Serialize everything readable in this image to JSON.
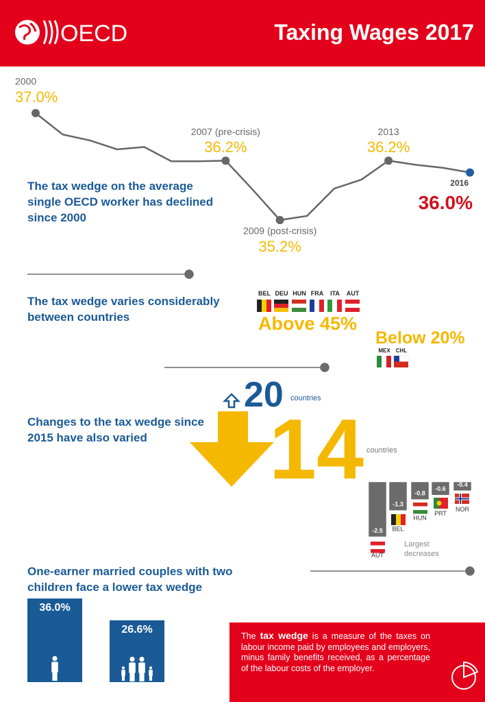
{
  "header": {
    "logo": "OECD",
    "title": "Taxing Wages 2017"
  },
  "trend_text": "The tax wedge on the average single OECD worker has declined since 2000",
  "countries": {
    "text": "The tax wedge varies considerably between countries",
    "above": {
      "label": "Above 45%",
      "codes": [
        "BEL",
        "DEU",
        "HUN",
        "FRA",
        "ITA",
        "AUT"
      ]
    },
    "below": {
      "label": "Below 20%",
      "codes": [
        "MEX",
        "CHL"
      ]
    }
  },
  "changes": {
    "text": "Changes to the tax wedge since 2015 have also varied",
    "increase": {
      "count": 20,
      "unit": "countries"
    },
    "decrease": {
      "count": 14,
      "unit": "countries"
    }
  },
  "couples_text": "One-earner married couples with two children face a lower tax wedge",
  "note": {
    "lead": "The",
    "term": "tax wedge",
    "rest": "is a measure of the taxes on labour income paid by employees and employers, minus family benefits received, as a percentage of the labour costs of the employer."
  },
  "chart_data": [
    {
      "type": "line",
      "x": [
        2000,
        2001,
        2002,
        2003,
        2004,
        2005,
        2006,
        2007,
        2008,
        2009,
        2010,
        2011,
        2012,
        2013,
        2014,
        2015,
        2016
      ],
      "x_labels": [
        "2000",
        null,
        null,
        null,
        null,
        null,
        null,
        "2007 (pre-crisis)",
        null,
        "2009 (post-crisis)",
        null,
        null,
        null,
        "2013",
        null,
        null,
        "2016"
      ],
      "values": [
        37.0,
        36.64,
        36.54,
        36.39,
        36.43,
        36.19,
        36.19,
        36.2,
        35.71,
        35.2,
        35.27,
        35.73,
        35.88,
        36.2,
        36.13,
        36.08,
        36.0
      ],
      "value_labels": [
        "37.0%",
        null,
        null,
        null,
        null,
        null,
        null,
        "36.2%",
        null,
        "35.2%",
        null,
        null,
        null,
        "36.2%",
        null,
        null,
        "36.0%"
      ],
      "xlim": [
        2000,
        2016
      ],
      "ylim": [
        35.2,
        37.0
      ],
      "color": "#666666",
      "last_color": "#1f5f9c"
    },
    {
      "type": "bar",
      "title": "Largest decreases",
      "categories": [
        "AUT",
        "BEL",
        "HUN",
        "PRT",
        "NOR"
      ],
      "values": [
        -2.5,
        -1.3,
        -0.8,
        -0.6,
        -0.4
      ],
      "ylim": [
        -2.5,
        0
      ],
      "color": "#6b6b6b"
    },
    {
      "type": "bar",
      "values": [
        36.0,
        26.6
      ],
      "value_labels": [
        "36.0%",
        "26.6%"
      ],
      "ylim": [
        0,
        36.0
      ],
      "color": "#1a5a96"
    }
  ]
}
